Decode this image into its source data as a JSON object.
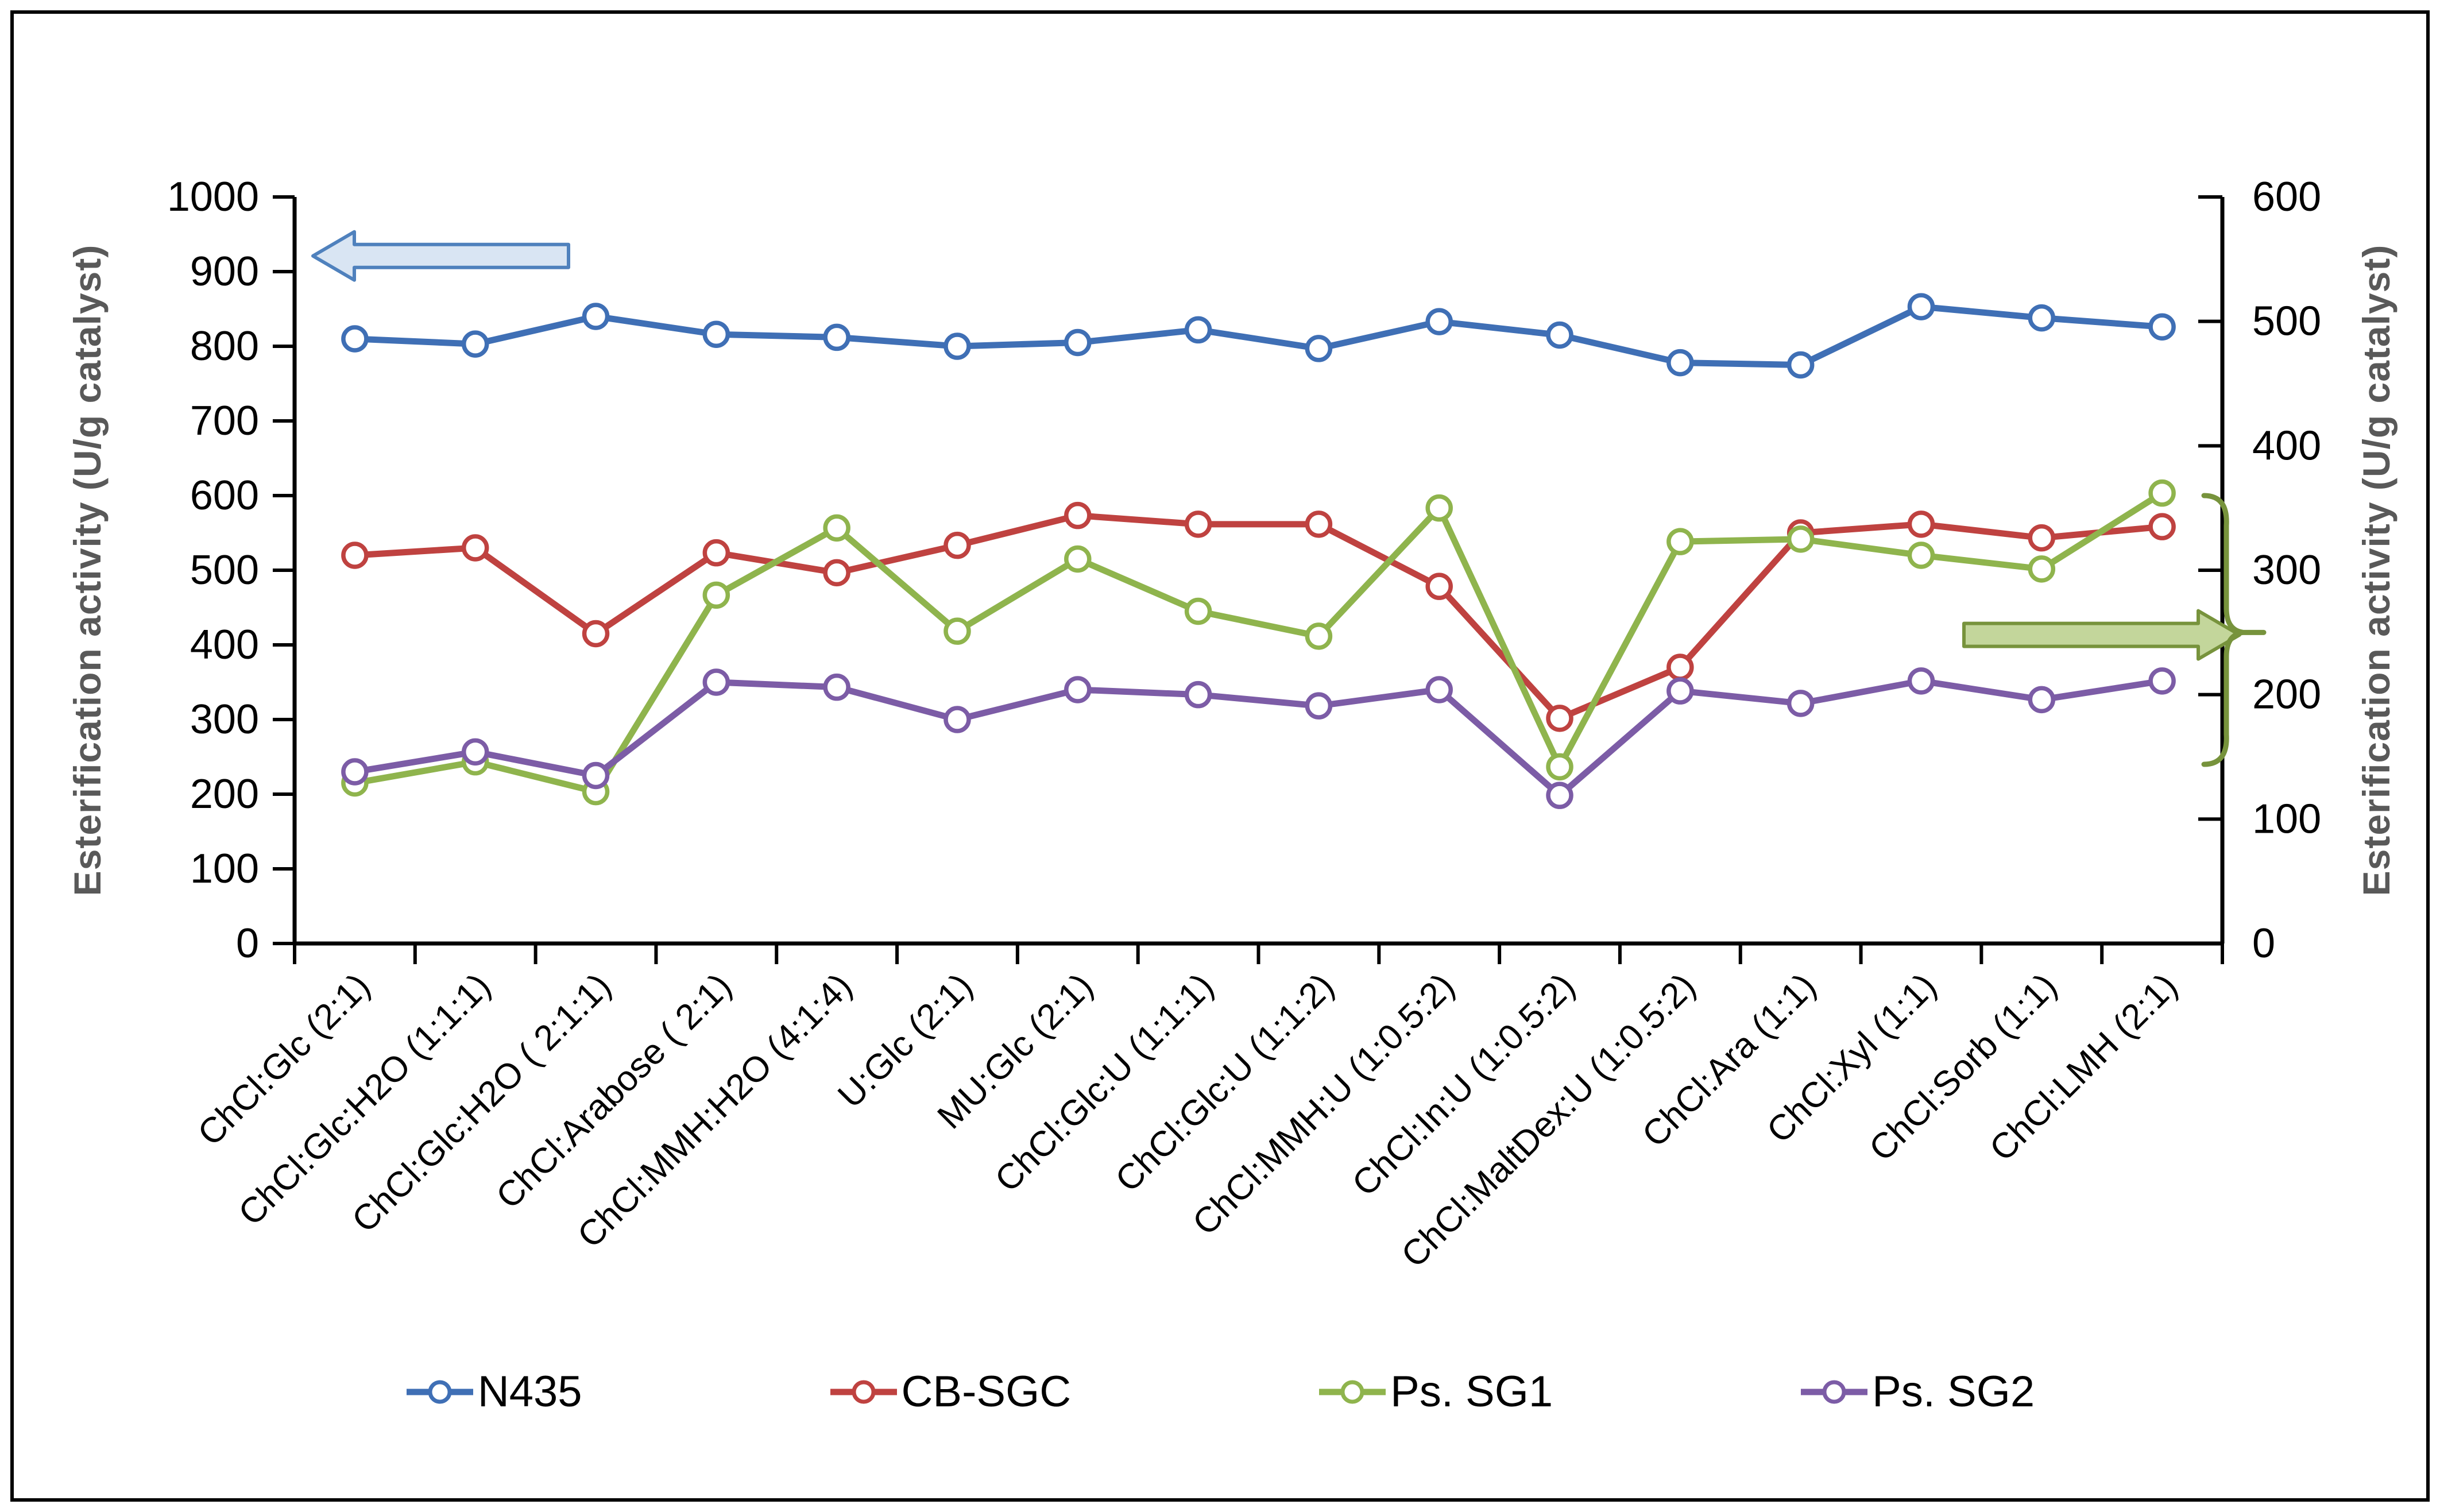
{
  "chart_data": {
    "type": "line",
    "title": "",
    "grid": false,
    "legend_position": "bottom",
    "categories": [
      "ChCl:Glc (2:1)",
      "ChCl:Glc:H2O (1:1:1)",
      "ChCl:Glc:H2O ( 2:1:1)",
      "ChCl:Arabose ( 2:1)",
      "ChCl:MMH:H2O (4:1:4)",
      "U:Glc (2:1)",
      "MU:Glc (2:1)",
      "ChCl:Glc:U (1:1:1)",
      "ChCl:Glc:U (1:1:2)",
      "ChCl:MMH:U (1:0.5:2)",
      "ChCl:In:U (1:0.5:2)",
      "ChCl:MaltDex:U (1:0.5:2)",
      "ChCl:Ara (1:1)",
      "ChCl:Xyl (1:1)",
      "ChCl:Sorb (1:1)",
      "ChCl:LMH (2:1)"
    ],
    "left_axis": {
      "title": "Esterification activity (U/g catalyst)",
      "min": 0,
      "max": 1000,
      "tick_step": 100,
      "tick_labels": [
        "0",
        "100",
        "200",
        "300",
        "400",
        "500",
        "600",
        "700",
        "800",
        "900",
        "1000"
      ]
    },
    "right_axis": {
      "title": "Esterification activity (U/g catalyst)",
      "min": 0,
      "max": 600,
      "tick_step": 100,
      "tick_labels": [
        "0",
        "100",
        "200",
        "300",
        "400",
        "500",
        "600"
      ]
    },
    "series": [
      {
        "name": "N435",
        "axis": "left",
        "color": "#3F6FB5",
        "values": [
          810,
          803,
          840,
          816,
          812,
          800,
          805,
          822,
          797,
          833,
          815,
          778,
          775,
          853,
          838,
          826
        ]
      },
      {
        "name": "CB-SGC",
        "axis": "right",
        "color": "#BF4240",
        "values": [
          312,
          318,
          249,
          314,
          298,
          320,
          344,
          337,
          337,
          287,
          181,
          222,
          330,
          337,
          326,
          335
        ]
      },
      {
        "name": "Ps. SG1",
        "axis": "right",
        "color": "#8FB44D",
        "values": [
          129,
          146,
          122,
          280,
          334,
          251,
          309,
          267,
          247,
          350,
          142,
          323,
          325,
          312,
          301,
          362
        ]
      },
      {
        "name": "Ps. SG2",
        "axis": "right",
        "color": "#7C5CA6",
        "values": [
          138,
          154,
          135,
          210,
          206,
          180,
          204,
          200,
          191,
          204,
          119,
          203,
          193,
          211,
          196,
          211
        ]
      }
    ],
    "annotations": {
      "left_axis_arrow": {
        "direction": "left",
        "fill": "#D9E5F3",
        "stroke": "#4F81BD",
        "at_left_value": 921
      },
      "right_axis_arrow": {
        "direction": "right",
        "fill": "#C3D69B",
        "stroke": "#77933C",
        "at_right_value": 248
      },
      "right_axis_brace": {
        "stroke": "#77933C",
        "from_right_value": 360,
        "to_right_value": 144,
        "cusp_right_value": 250
      }
    }
  }
}
